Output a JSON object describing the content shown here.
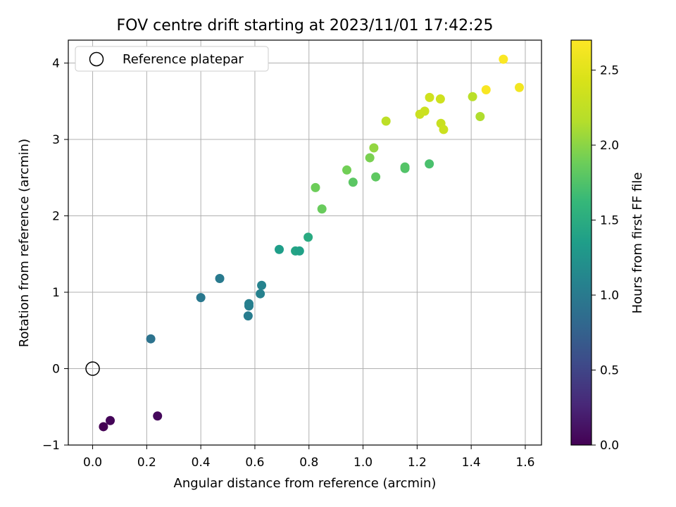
{
  "chart_data": {
    "type": "scatter",
    "title": "FOV centre drift starting at 2023/11/01 17:42:25",
    "xlabel": "Angular distance from reference (arcmin)",
    "ylabel": "Rotation from reference (arcmin)",
    "xlim": [
      -0.09,
      1.66
    ],
    "ylim": [
      -1.0,
      4.3
    ],
    "xticks": [
      "0.0",
      "0.2",
      "0.4",
      "0.6",
      "0.8",
      "1.0",
      "1.2",
      "1.4",
      "1.6"
    ],
    "xtick_values": [
      0.0,
      0.2,
      0.4,
      0.6,
      0.8,
      1.0,
      1.2,
      1.4,
      1.6
    ],
    "yticks": [
      "−1",
      "0",
      "1",
      "2",
      "3",
      "4"
    ],
    "ytick_values": [
      -1,
      0,
      1,
      2,
      3,
      4
    ],
    "grid": true,
    "legend": {
      "location": "upper-left",
      "entries": [
        "Reference platepar"
      ]
    },
    "reference_point": {
      "x": 0.0,
      "y": 0.0
    },
    "colorbar": {
      "label": "Hours from first FF file",
      "colormap": "viridis",
      "range": [
        0.0,
        2.7
      ],
      "ticks": [
        "0.0",
        "0.5",
        "1.0",
        "1.5",
        "2.0",
        "2.5"
      ],
      "tick_values": [
        0.0,
        0.5,
        1.0,
        1.5,
        2.0,
        2.5
      ]
    },
    "points": [
      {
        "x": 0.04,
        "y": -0.76,
        "c": 0.0
      },
      {
        "x": 0.065,
        "y": -0.68,
        "c": 0.03
      },
      {
        "x": 0.24,
        "y": -0.62,
        "c": 0.05
      },
      {
        "x": 0.215,
        "y": 0.39,
        "c": 0.92
      },
      {
        "x": 0.4,
        "y": 0.93,
        "c": 0.98
      },
      {
        "x": 0.47,
        "y": 1.18,
        "c": 1.0
      },
      {
        "x": 0.575,
        "y": 0.69,
        "c": 1.02
      },
      {
        "x": 0.578,
        "y": 0.82,
        "c": 1.04
      },
      {
        "x": 0.578,
        "y": 0.85,
        "c": 1.05
      },
      {
        "x": 0.62,
        "y": 0.98,
        "c": 1.07
      },
      {
        "x": 0.625,
        "y": 1.09,
        "c": 1.09
      },
      {
        "x": 0.69,
        "y": 1.56,
        "c": 1.35
      },
      {
        "x": 0.75,
        "y": 1.54,
        "c": 1.42
      },
      {
        "x": 0.765,
        "y": 1.54,
        "c": 1.38
      },
      {
        "x": 0.797,
        "y": 1.72,
        "c": 1.48
      },
      {
        "x": 0.824,
        "y": 2.37,
        "c": 1.88
      },
      {
        "x": 0.848,
        "y": 2.09,
        "c": 1.86
      },
      {
        "x": 0.94,
        "y": 2.6,
        "c": 1.9
      },
      {
        "x": 0.963,
        "y": 2.44,
        "c": 1.8
      },
      {
        "x": 1.025,
        "y": 2.76,
        "c": 1.93
      },
      {
        "x": 1.04,
        "y": 2.89,
        "c": 2.03
      },
      {
        "x": 1.047,
        "y": 2.51,
        "c": 1.82
      },
      {
        "x": 1.085,
        "y": 3.24,
        "c": 2.22
      },
      {
        "x": 1.155,
        "y": 2.62,
        "c": 1.75
      },
      {
        "x": 1.155,
        "y": 2.64,
        "c": 1.77
      },
      {
        "x": 1.21,
        "y": 3.33,
        "c": 2.32
      },
      {
        "x": 1.228,
        "y": 3.37,
        "c": 2.33
      },
      {
        "x": 1.245,
        "y": 2.68,
        "c": 1.72
      },
      {
        "x": 1.246,
        "y": 3.55,
        "c": 2.36
      },
      {
        "x": 1.286,
        "y": 3.53,
        "c": 2.35
      },
      {
        "x": 1.288,
        "y": 3.21,
        "c": 2.31
      },
      {
        "x": 1.298,
        "y": 3.13,
        "c": 2.33
      },
      {
        "x": 1.405,
        "y": 3.56,
        "c": 2.2
      },
      {
        "x": 1.433,
        "y": 3.3,
        "c": 2.14
      },
      {
        "x": 1.455,
        "y": 3.65,
        "c": 2.66
      },
      {
        "x": 1.519,
        "y": 4.05,
        "c": 2.68
      },
      {
        "x": 1.578,
        "y": 3.68,
        "c": 2.62
      }
    ]
  }
}
